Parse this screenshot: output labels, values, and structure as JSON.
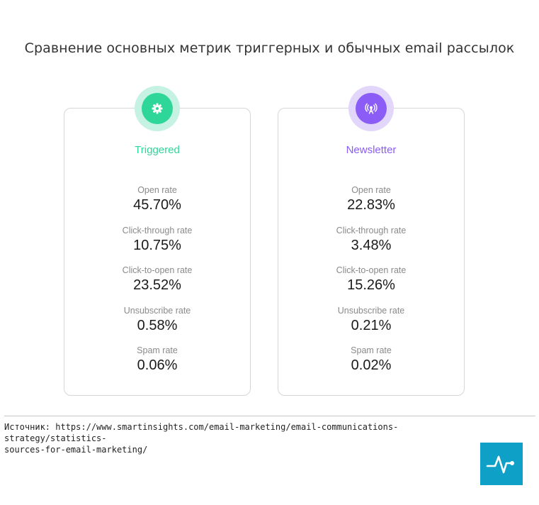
{
  "title": "Сравнение основных метрик триггерных и обычных email рассылок",
  "cards": [
    {
      "name": "Triggered",
      "accent": "#2fd69a",
      "halo": "#c6f2e3",
      "icon": "gear-icon",
      "metrics": [
        {
          "label": "Open rate",
          "value": "45.70%"
        },
        {
          "label": "Click-through rate",
          "value": "10.75%"
        },
        {
          "label": "Click-to-open rate",
          "value": "23.52%"
        },
        {
          "label": "Unsubscribe rate",
          "value": "0.58%"
        },
        {
          "label": "Spam rate",
          "value": "0.06%"
        }
      ]
    },
    {
      "name": "Newsletter",
      "accent": "#8b5cf6",
      "halo": "#e2d6fb",
      "icon": "broadcast-antenna-icon",
      "metrics": [
        {
          "label": "Open rate",
          "value": "22.83%"
        },
        {
          "label": "Click-through rate",
          "value": "3.48%"
        },
        {
          "label": "Click-to-open rate",
          "value": "15.26%"
        },
        {
          "label": "Unsubscribe rate",
          "value": "0.21%"
        },
        {
          "label": "Spam rate",
          "value": "0.02%"
        }
      ]
    }
  ],
  "source": {
    "line1": "Источник: https://www.smartinsights.com/email-marketing/email-communications-strategy/statistics-",
    "line2": "sources-for-email-marketing/"
  },
  "logo": {
    "icon": "pulse-logo-icon",
    "color": "#0fa0c8"
  }
}
